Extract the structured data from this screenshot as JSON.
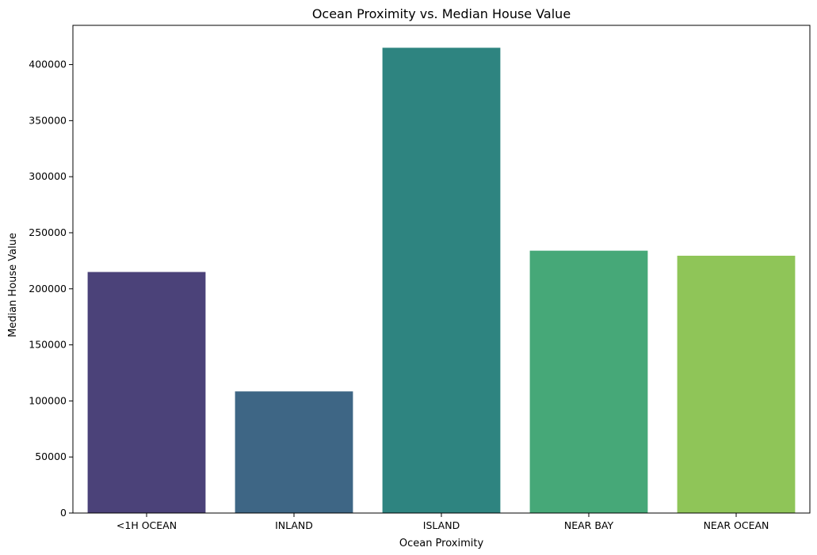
{
  "chart_data": {
    "type": "bar",
    "title": "Ocean Proximity vs. Median House Value",
    "xlabel": "Ocean Proximity",
    "ylabel": "Median House Value",
    "categories": [
      "<1H OCEAN",
      "INLAND",
      "ISLAND",
      "NEAR BAY",
      "NEAR OCEAN"
    ],
    "values": [
      215000,
      108500,
      415000,
      234000,
      229500
    ],
    "colors": [
      "#4b4279",
      "#3e6685",
      "#2e8480",
      "#46a878",
      "#8fc558"
    ],
    "ylim": [
      0,
      435000
    ],
    "yticks": [
      0,
      50000,
      100000,
      150000,
      200000,
      250000,
      300000,
      350000,
      400000
    ],
    "ytick_labels": [
      "0",
      "50000",
      "100000",
      "150000",
      "200000",
      "250000",
      "300000",
      "350000",
      "400000"
    ],
    "grid": false,
    "legend": "none"
  }
}
